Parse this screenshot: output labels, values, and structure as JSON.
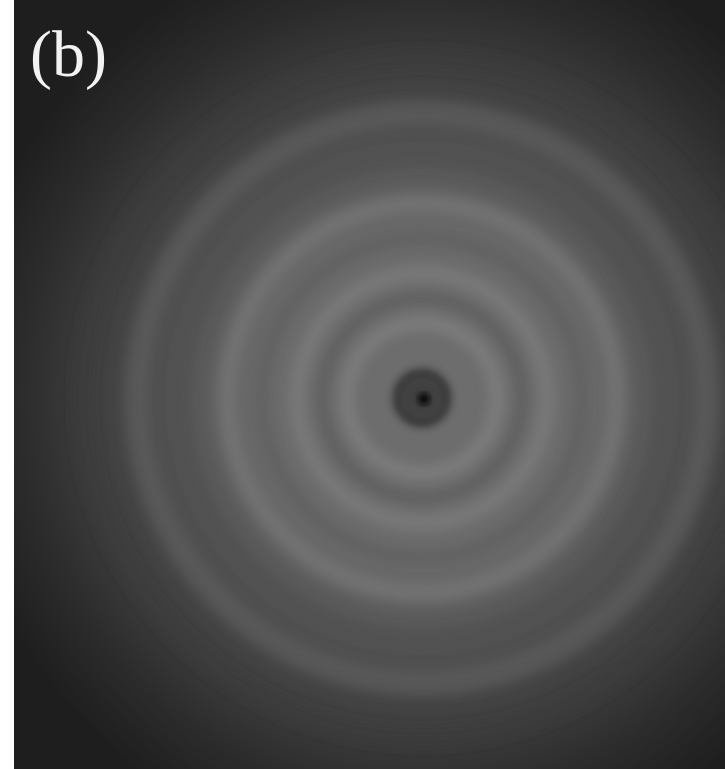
{
  "panel": {
    "label": "(b)"
  }
}
